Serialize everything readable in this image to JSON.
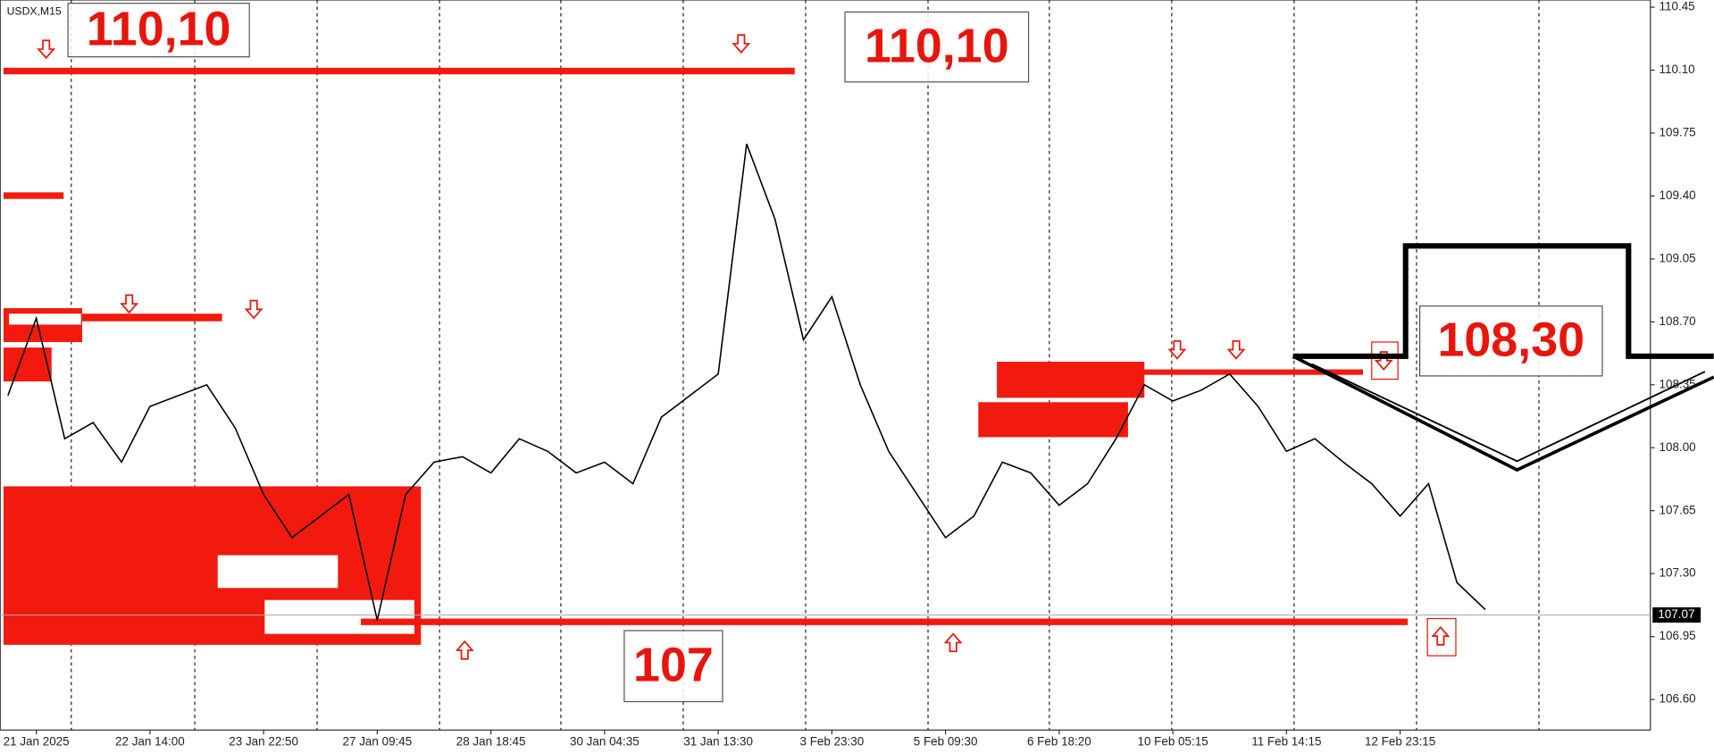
{
  "chart_data": {
    "type": "line",
    "symbol": "USDX,M15",
    "categories": [
      null,
      "21 Jan 2025",
      null,
      null,
      null,
      "22 Jan 14:00",
      null,
      null,
      null,
      "23 Jan 22:50",
      null,
      null,
      null,
      "27 Jan 09:45",
      null,
      null,
      null,
      "28 Jan 18:45",
      null,
      null,
      null,
      "30 Jan 04:35",
      null,
      null,
      null,
      "31 Jan 13:30",
      null,
      null,
      null,
      "3 Feb 23:30",
      null,
      null,
      null,
      "5 Feb 09:30",
      null,
      null,
      null,
      "6 Feb 18:20",
      null,
      null,
      null,
      "10 Feb 05:15",
      null,
      null,
      null,
      "11 Feb 14:15",
      null,
      null,
      null,
      "12 Feb 23:15",
      null,
      null,
      null
    ],
    "series": [
      {
        "name": "USDX",
        "color": "#000000",
        "values": [
          108.29,
          108.72,
          108.05,
          108.14,
          107.92,
          108.23,
          108.29,
          108.35,
          108.11,
          107.74,
          107.5,
          107.62,
          107.74,
          107.04,
          107.74,
          107.92,
          107.95,
          107.86,
          108.05,
          107.98,
          107.86,
          107.92,
          107.8,
          108.17,
          108.29,
          108.41,
          109.69,
          109.27,
          108.6,
          108.84,
          108.35,
          107.98,
          107.74,
          107.5,
          107.62,
          107.92,
          107.86,
          107.68,
          107.8,
          108.05,
          108.35,
          108.26,
          108.32,
          108.41,
          108.23,
          107.98,
          108.05,
          107.92,
          107.8,
          107.62,
          107.8,
          107.25,
          107.1
        ]
      }
    ],
    "ylim": [
      106.43,
      110.49
    ],
    "yticks": [
      {
        "value": 106.6,
        "label": "106.60"
      },
      106.95,
      {
        "value": 107.3,
        "label": "107.30"
      },
      107.65,
      {
        "value": 108.0,
        "label": "108.00"
      },
      108.35,
      {
        "value": 108.7,
        "label": "108.70"
      },
      109.05,
      {
        "value": 109.4,
        "label": "109.40"
      },
      109.75,
      {
        "value": 110.1,
        "label": "110.10"
      },
      110.45
    ],
    "last_price": 107.07,
    "annotations": [
      "110,10",
      "110,10",
      "107",
      "108,30"
    ]
  }
}
